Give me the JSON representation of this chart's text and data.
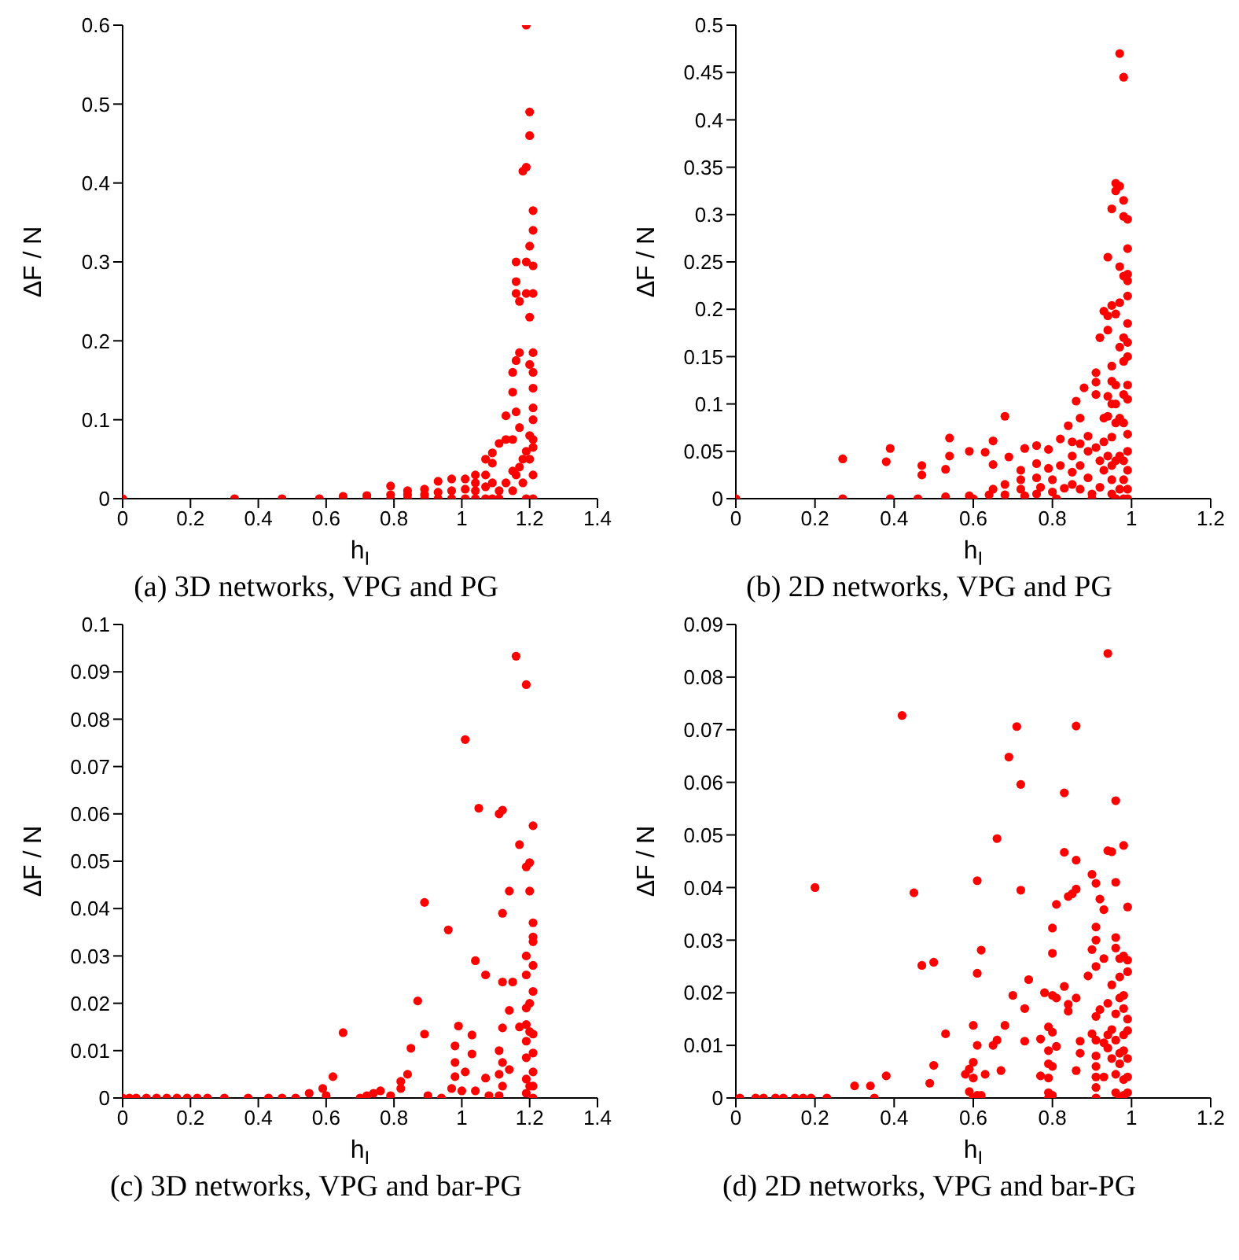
{
  "chart_data": [
    {
      "type": "scatter",
      "xlabel": "h$_{I}$",
      "ylabel": "ΔF / N",
      "annotations": [
        "(a) 3D networks, VPG and PG"
      ],
      "color": "#ff0000",
      "marker": "circle",
      "grid": false,
      "xlim": [
        0,
        1.4
      ],
      "xticks": [
        0,
        0.2,
        0.4,
        0.6,
        0.8,
        1,
        1.2,
        1.4
      ],
      "ylim": [
        0,
        0.6
      ],
      "yticks": [
        0,
        0.1,
        0.2,
        0.3,
        0.4,
        0.5,
        0.6
      ],
      "x": [
        0,
        0.33,
        0.47,
        0.58,
        0.65,
        0.72,
        0.72,
        0.79,
        0.79,
        0.79,
        0.84,
        0.84,
        0.84,
        0.89,
        0.89,
        0.89,
        0.93,
        0.93,
        0.93,
        0.97,
        0.97,
        0.97,
        1.01,
        1.01,
        1.01,
        1.04,
        1.04,
        1.04,
        1.04,
        1.07,
        1.07,
        1.07,
        1.07,
        1.09,
        1.09,
        1.09,
        1.09,
        1.11,
        1.11,
        1.11,
        1.13,
        1.13,
        1.13,
        1.15,
        1.15,
        1.15,
        1.15,
        1.15,
        1.16,
        1.16,
        1.16,
        1.16,
        1.16,
        1.16,
        1.17,
        1.17,
        1.17,
        1.17,
        1.18,
        1.18,
        1.18,
        1.19,
        1.19,
        1.19,
        1.19,
        1.19,
        1.19,
        1.2,
        1.2,
        1.2,
        1.2,
        1.2,
        1.2,
        1.2,
        1.21,
        1.21,
        1.21,
        1.21,
        1.21,
        1.21,
        1.21,
        1.21,
        1.21,
        1.21,
        1.21,
        1.21,
        1.21
      ],
      "values": [
        0,
        0,
        0,
        0,
        0.003,
        0,
        0.004,
        0,
        0.005,
        0.016,
        0,
        0.005,
        0.01,
        0,
        0.005,
        0.012,
        0,
        0.008,
        0.022,
        0,
        0.01,
        0.025,
        0,
        0.012,
        0.025,
        0,
        0.01,
        0.02,
        0.03,
        0,
        0.015,
        0.03,
        0.05,
        0,
        0.02,
        0.045,
        0.058,
        0,
        0.01,
        0.07,
        0.02,
        0.105,
        0.075,
        0.01,
        0.035,
        0.135,
        0.16,
        0.075,
        0.03,
        0.175,
        0.275,
        0.26,
        0.3,
        0.11,
        0.04,
        0.09,
        0.185,
        0.25,
        0.415,
        0.05,
        0.02,
        0.6,
        0.42,
        0.26,
        0.3,
        0,
        0.06,
        0.49,
        0.46,
        0.17,
        0.23,
        0.32,
        0.08,
        0.05,
        0.365,
        0.34,
        0.295,
        0.26,
        0.185,
        0.16,
        0.14,
        0.115,
        0.1,
        0.075,
        0.065,
        0.03,
        0
      ]
    },
    {
      "type": "scatter",
      "xlabel": "h$_{I}$",
      "ylabel": "ΔF / N",
      "annotations": [
        "(b) 2D networks, VPG and PG"
      ],
      "color": "#ff0000",
      "marker": "circle",
      "grid": false,
      "xlim": [
        0,
        1.2
      ],
      "xticks": [
        0,
        0.2,
        0.4,
        0.6,
        0.8,
        1,
        1.2
      ],
      "ylim": [
        0,
        0.5
      ],
      "yticks": [
        0,
        0.05,
        0.1,
        0.15,
        0.2,
        0.25,
        0.3,
        0.35,
        0.4,
        0.45,
        0.5
      ],
      "x": [
        0,
        0.27,
        0.27,
        0.38,
        0.39,
        0.39,
        0.47,
        0.47,
        0.46,
        0.53,
        0.54,
        0.54,
        0.53,
        0.59,
        0.59,
        0.6,
        0.63,
        0.65,
        0.65,
        0.65,
        0.64,
        0.68,
        0.69,
        0.68,
        0.68,
        0.72,
        0.72,
        0.72,
        0.73,
        0.73,
        0.76,
        0.76,
        0.76,
        0.77,
        0.76,
        0.79,
        0.79,
        0.8,
        0.8,
        0.81,
        0.82,
        0.82,
        0.83,
        0.84,
        0.85,
        0.85,
        0.85,
        0.85,
        0.86,
        0.87,
        0.87,
        0.87,
        0.87,
        0.88,
        0.89,
        0.89,
        0.89,
        0.9,
        0.9,
        0.91,
        0.91,
        0.91,
        0.91,
        0.92,
        0.92,
        0.92,
        0.93,
        0.93,
        0.93,
        0.93,
        0.94,
        0.94,
        0.94,
        0.94,
        0.94,
        0.94,
        0.95,
        0.95,
        0.95,
        0.95,
        0.95,
        0.95,
        0.95,
        0.95,
        0.95,
        0.96,
        0.96,
        0.96,
        0.96,
        0.96,
        0.96,
        0.96,
        0.96,
        0.97,
        0.97,
        0.97,
        0.97,
        0.97,
        0.97,
        0.97,
        0.97,
        0.98,
        0.98,
        0.98,
        0.98,
        0.98,
        0.98,
        0.98,
        0.98,
        0.98,
        0.98,
        0.98,
        0.99,
        0.99,
        0.99,
        0.99,
        0.99,
        0.99,
        0.99,
        0.99,
        0.99,
        0.99,
        0.99,
        0.99,
        0.99,
        0.99,
        0.99
      ],
      "values": [
        0,
        0.042,
        0,
        0.039,
        0.053,
        0,
        0.025,
        0.035,
        0,
        0.031,
        0.045,
        0.064,
        0.002,
        0.05,
        0.003,
        0,
        0.049,
        0.061,
        0.036,
        0.01,
        0.004,
        0.087,
        0.044,
        0.015,
        0.004,
        0.03,
        0.02,
        0.01,
        0.053,
        0.003,
        0.056,
        0.037,
        0.022,
        0.012,
        0.005,
        0.052,
        0.032,
        0.02,
        0.007,
        0,
        0.063,
        0.035,
        0.011,
        0.077,
        0.06,
        0.045,
        0.028,
        0.015,
        0.103,
        0.085,
        0.058,
        0.035,
        0.01,
        0.117,
        0.066,
        0.05,
        0.022,
        0.005,
        0,
        0.133,
        0.123,
        0.11,
        0.054,
        0.17,
        0.04,
        0.012,
        0.198,
        0.085,
        0.06,
        0.03,
        0.255,
        0.193,
        0.178,
        0.108,
        0.087,
        0.045,
        0.306,
        0.204,
        0.14,
        0.124,
        0.1,
        0.065,
        0.035,
        0.02,
        0.005,
        0.325,
        0.333,
        0.195,
        0.12,
        0.1,
        0.08,
        0.04,
        0,
        0.47,
        0.33,
        0.245,
        0.207,
        0.16,
        0.085,
        0.045,
        0.01,
        0.445,
        0.315,
        0.298,
        0.235,
        0.17,
        0.145,
        0.11,
        0.08,
        0.04,
        0.02,
        0,
        0.295,
        0.264,
        0.237,
        0.23,
        0.214,
        0.185,
        0.165,
        0.15,
        0.12,
        0.105,
        0.068,
        0.05,
        0.03,
        0.01,
        0
      ]
    },
    {
      "type": "scatter",
      "xlabel": "h$_{I}$",
      "ylabel": "ΔF / N",
      "annotations": [
        "(c) 3D networks, VPG and bar-PG"
      ],
      "color": "#ff0000",
      "marker": "circle",
      "grid": false,
      "xlim": [
        0,
        1.4
      ],
      "xticks": [
        0,
        0.2,
        0.4,
        0.6,
        0.8,
        1,
        1.2,
        1.4
      ],
      "ylim": [
        0,
        0.1
      ],
      "yticks": [
        0,
        0.01,
        0.02,
        0.03,
        0.04,
        0.05,
        0.06,
        0.07,
        0.08,
        0.09,
        0.1
      ],
      "x": [
        0,
        0.02,
        0.04,
        0.07,
        0.1,
        0.13,
        0.16,
        0.19,
        0.22,
        0.25,
        0.3,
        0.37,
        0.43,
        0.47,
        0.51,
        0.55,
        0.59,
        0.6,
        0.62,
        0.65,
        0.7,
        0.72,
        0.74,
        0.76,
        0.79,
        0.82,
        0.82,
        0.84,
        0.85,
        0.87,
        0.89,
        0.89,
        0.9,
        0.94,
        0.96,
        0.97,
        0.98,
        0.98,
        0.98,
        0.99,
        1.0,
        1.01,
        1.01,
        1.03,
        1.03,
        1.04,
        1.04,
        1.05,
        1.07,
        1.07,
        1.08,
        1.11,
        1.12,
        1.12,
        1.12,
        1.12,
        1.11,
        1.12,
        1.11,
        1.12,
        1.11,
        1.14,
        1.14,
        1.15,
        1.14,
        1.16,
        1.17,
        1.17,
        1.19,
        1.19,
        1.19,
        1.19,
        1.19,
        1.19,
        1.19,
        1.19,
        1.19,
        1.19,
        1.2,
        1.2,
        1.2,
        1.2,
        1.2,
        1.21,
        1.21,
        1.21,
        1.21,
        1.21,
        1.21,
        1.21,
        1.21,
        1.21,
        1.21,
        1.21
      ],
      "values": [
        0,
        0,
        0,
        0,
        0,
        0,
        0,
        0,
        0,
        0,
        0,
        0,
        0,
        0,
        0,
        0.001,
        0.002,
        0.0005,
        0.0045,
        0.0138,
        0,
        0.0005,
        0.001,
        0.0015,
        0.0005,
        0.0035,
        0.002,
        0.005,
        0.0105,
        0.0205,
        0.0413,
        0.0135,
        0.0005,
        0,
        0.0355,
        0.002,
        0.0075,
        0.011,
        0.0045,
        0.0152,
        0.0015,
        0.0757,
        0.0055,
        0.0133,
        0.0093,
        0.029,
        0.0015,
        0.0612,
        0.026,
        0.0042,
        0.0005,
        0.06,
        0.0608,
        0.039,
        0.0245,
        0.0148,
        0.01,
        0.0075,
        0.005,
        0.0025,
        0.0005,
        0.0437,
        0.0185,
        0.0245,
        0.006,
        0.0933,
        0.0535,
        0.015,
        0.0873,
        0.0488,
        0.03,
        0.026,
        0.019,
        0.0155,
        0.012,
        0.0085,
        0.004,
        0.001,
        0.0497,
        0.0437,
        0.02,
        0.014,
        0.0025,
        0.0575,
        0.037,
        0.034,
        0.033,
        0.028,
        0.0225,
        0.0135,
        0.0095,
        0.0055,
        0.0025,
        0
      ]
    },
    {
      "type": "scatter",
      "xlabel": "h$_{I}$",
      "ylabel": "ΔF / N",
      "annotations": [
        "(d) 2D networks, VPG and bar-PG"
      ],
      "color": "#ff0000",
      "marker": "circle",
      "grid": false,
      "xlim": [
        0,
        1.2
      ],
      "xticks": [
        0,
        0.2,
        0.4,
        0.6,
        0.8,
        1,
        1.2
      ],
      "ylim": [
        0,
        0.09
      ],
      "yticks": [
        0,
        0.01,
        0.02,
        0.03,
        0.04,
        0.05,
        0.06,
        0.07,
        0.08,
        0.09
      ],
      "x": [
        0.01,
        0.05,
        0.07,
        0.1,
        0.12,
        0.15,
        0.17,
        0.19,
        0.23,
        0.35,
        0.2,
        0.3,
        0.34,
        0.38,
        0.42,
        0.45,
        0.47,
        0.49,
        0.5,
        0.5,
        0.53,
        0.58,
        0.59,
        0.59,
        0.6,
        0.6,
        0.6,
        0.6,
        0.61,
        0.61,
        0.61,
        0.61,
        0.62,
        0.62,
        0.63,
        0.65,
        0.66,
        0.66,
        0.67,
        0.68,
        0.69,
        0.7,
        0.71,
        0.72,
        0.72,
        0.73,
        0.73,
        0.74,
        0.77,
        0.77,
        0.78,
        0.79,
        0.79,
        0.79,
        0.79,
        0.79,
        0.79,
        0.8,
        0.8,
        0.8,
        0.8,
        0.8,
        0.8,
        0.81,
        0.81,
        0.81,
        0.83,
        0.83,
        0.84,
        0.83,
        0.84,
        0.84,
        0.85,
        0.86,
        0.86,
        0.86,
        0.86,
        0.86,
        0.87,
        0.87,
        0.89,
        0.9,
        0.9,
        0.9,
        0.91,
        0.91,
        0.91,
        0.91,
        0.91,
        0.91,
        0.91,
        0.91,
        0.91,
        0.91,
        0.91,
        0.92,
        0.92,
        0.93,
        0.93,
        0.93,
        0.93,
        0.94,
        0.94,
        0.94,
        0.94,
        0.94,
        0.95,
        0.95,
        0.95,
        0.95,
        0.96,
        0.96,
        0.96,
        0.96,
        0.96,
        0.96,
        0.96,
        0.96,
        0.97,
        0.97,
        0.97,
        0.97,
        0.97,
        0.97,
        0.98,
        0.98,
        0.98,
        0.98,
        0.98,
        0.98,
        0.98,
        0.98,
        0.99,
        0.99,
        0.99,
        0.99,
        0.99,
        0.99,
        0.99,
        0.99
      ],
      "values": [
        0,
        0,
        0,
        0,
        0,
        0,
        0,
        0,
        0,
        0,
        0.04,
        0.0023,
        0.0023,
        0.0042,
        0.0727,
        0.039,
        0.0252,
        0.0028,
        0.0258,
        0.0062,
        0.0122,
        0.0045,
        0.0055,
        0.0012,
        0,
        0.0138,
        0.0068,
        0.0038,
        0.0413,
        0.0237,
        0.01,
        0.0005,
        0.0281,
        0.0005,
        0.0045,
        0.01,
        0.0493,
        0.011,
        0.0052,
        0.0138,
        0.0648,
        0.0195,
        0.0706,
        0.0395,
        0.0596,
        0.017,
        0.0108,
        0.0225,
        0.0042,
        0.0112,
        0.02,
        0.0135,
        0.009,
        0.0065,
        0.0038,
        0.001,
        0,
        0.0323,
        0.0275,
        0.0195,
        0.0125,
        0.006,
        0.0005,
        0.0368,
        0.019,
        0.0098,
        0.0467,
        0.058,
        0.0383,
        0.0212,
        0.0178,
        0.0165,
        0.0388,
        0.0707,
        0.0452,
        0.0397,
        0.019,
        0.0052,
        0.0108,
        0.0085,
        0.0232,
        0.0282,
        0.0122,
        0.0425,
        0.0408,
        0.0325,
        0.03,
        0.025,
        0.0155,
        0.011,
        0.008,
        0.006,
        0.004,
        0.002,
        0,
        0.0378,
        0.0168,
        0.0358,
        0.0265,
        0.0105,
        0.004,
        0.0845,
        0.047,
        0.018,
        0.012,
        0.0095,
        0.0468,
        0.0215,
        0.013,
        0.0075,
        0.0565,
        0.041,
        0.0305,
        0.0285,
        0.016,
        0.011,
        0.0045,
        0.001,
        0.0265,
        0.023,
        0.019,
        0.0085,
        0.0065,
        0,
        0.048,
        0.027,
        0.0195,
        0.017,
        0.012,
        0.009,
        0.0035,
        0.0005,
        0.0363,
        0.0262,
        0.024,
        0.015,
        0.0128,
        0.0075,
        0.004,
        0.001
      ]
    }
  ]
}
